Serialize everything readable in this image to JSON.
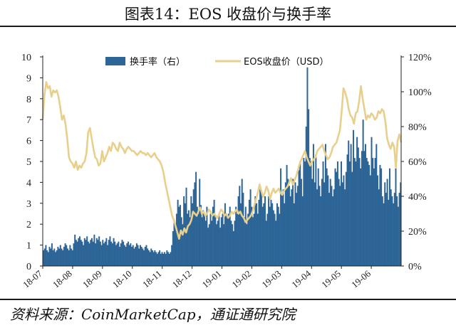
{
  "header": {
    "title": "图表14：EOS 收盘价与换手率"
  },
  "footer": {
    "source": "资料来源：CoinMarketCap，通证通研究院"
  },
  "colors": {
    "bars": "#2d6597",
    "line": "#e8cf8c",
    "axis": "#222222",
    "rules": "#1a1a1a"
  },
  "chart_data": {
    "type": "bar+line",
    "title": "图表14：EOS 收盘价与换手率",
    "legend_position": "top-center",
    "grid": false,
    "y_left": {
      "min": 0,
      "max": 10,
      "ticks": [
        "0",
        "1",
        "2",
        "3",
        "4",
        "5",
        "6",
        "7",
        "8",
        "9",
        "10"
      ]
    },
    "y_right": {
      "min": 0,
      "max": 120,
      "unit": "%",
      "ticks": [
        "0%",
        "20%",
        "40%",
        "60%",
        "80%",
        "100%",
        "120%"
      ]
    },
    "x_tick_labels": [
      "18-07",
      "18-08",
      "18-09",
      "18-10",
      "18-11",
      "18-12",
      "19-01",
      "19-02",
      "19-03",
      "19-04",
      "19-05",
      "19-06"
    ],
    "series": [
      {
        "name": "换手率（右）",
        "type": "bar",
        "axis": "right",
        "values_pct": [
          9,
          10,
          12,
          9,
          8,
          11,
          10,
          13,
          9,
          10,
          8,
          9,
          11,
          10,
          12,
          10,
          9,
          11,
          13,
          12,
          10,
          9,
          12,
          10,
          9,
          13,
          18,
          15,
          14,
          16,
          17,
          15,
          14,
          12,
          16,
          15,
          17,
          14,
          13,
          15,
          16,
          14,
          18,
          13,
          16,
          15,
          17,
          14,
          12,
          15,
          13,
          14,
          16,
          12,
          15,
          17,
          14,
          13,
          16,
          14,
          12,
          13,
          14,
          11,
          13,
          15,
          14,
          12,
          11,
          13,
          14,
          12,
          13,
          11,
          12,
          10,
          11,
          13,
          12,
          10,
          12,
          11,
          10,
          9,
          11,
          12,
          10,
          9,
          8,
          10,
          9,
          8,
          9,
          8,
          7,
          8,
          9,
          7,
          8,
          7,
          8,
          7,
          9,
          8,
          7,
          8,
          12,
          20,
          26,
          22,
          30,
          38,
          34,
          35,
          28,
          24,
          40,
          36,
          45,
          30,
          32,
          28,
          40,
          36,
          44,
          48,
          54,
          34,
          30,
          50,
          35,
          28,
          32,
          30,
          26,
          34,
          22,
          24,
          30,
          26,
          34,
          38,
          28,
          24,
          26,
          30,
          22,
          28,
          30,
          24,
          36,
          30,
          28,
          30,
          34,
          26,
          24,
          20,
          26,
          34,
          30,
          40,
          46,
          36,
          50,
          42,
          28,
          34,
          24,
          30,
          38,
          44,
          34,
          28,
          30,
          40,
          36,
          30,
          38,
          44,
          42,
          34,
          36,
          40,
          26,
          30,
          40,
          34,
          38,
          36,
          32,
          30,
          26,
          36,
          34,
          30,
          56,
          42,
          44,
          36,
          48,
          58,
          50,
          46,
          40,
          44,
          50,
          36,
          48,
          42,
          46,
          55,
          60,
          50,
          40,
          62,
          60,
          80,
          114,
          90,
          62,
          60,
          50,
          70,
          48,
          64,
          44,
          56,
          46,
          40,
          50,
          60,
          48,
          70,
          56,
          52,
          42,
          50,
          46,
          40,
          44,
          56,
          54,
          60,
          50,
          46,
          60,
          48,
          52,
          44,
          54,
          64,
          72,
          60,
          70,
          54,
          78,
          62,
          60,
          74,
          68,
          62,
          56,
          66,
          84,
          66,
          70,
          62,
          60,
          58,
          52,
          74,
          62,
          56,
          62,
          70,
          52,
          44,
          58,
          56,
          40,
          36,
          48,
          42,
          50,
          38,
          56,
          44,
          40,
          36,
          42,
          56,
          40,
          34,
          42,
          48
        ]
      },
      {
        "name": "EOS收盘价（USD）",
        "type": "line",
        "axis": "left",
        "values": [
          7.0,
          8.2,
          8.8,
          8.5,
          8.6,
          8.1,
          8.4,
          8.3,
          8.4,
          8.1,
          7.6,
          7.0,
          7.2,
          6.8,
          6.1,
          5.2,
          5.0,
          4.9,
          4.7,
          5.0,
          4.6,
          4.8,
          4.7,
          4.9,
          5.0,
          5.4,
          6.4,
          6.6,
          6.1,
          5.6,
          5.2,
          5.1,
          4.8,
          4.9,
          5.5,
          5.0,
          5.2,
          5.4,
          5.7,
          5.5,
          5.9,
          5.8,
          5.6,
          5.5,
          5.9,
          5.7,
          5.6,
          5.4,
          5.6,
          5.7,
          5.6,
          5.5,
          5.5,
          5.4,
          5.3,
          5.4,
          5.5,
          5.4,
          5.4,
          5.3,
          5.4,
          5.3,
          5.2,
          5.3,
          5.4,
          5.2,
          5.1,
          5.0,
          4.8,
          4.5,
          4.0,
          3.6,
          3.2,
          2.8,
          2.4,
          2.2,
          1.9,
          1.6,
          1.3,
          1.7,
          1.5,
          1.8,
          1.6,
          1.9,
          2.0,
          2.2,
          2.6,
          2.5,
          2.4,
          2.6,
          2.8,
          2.5,
          2.6,
          2.4,
          2.5,
          2.7,
          2.6,
          2.4,
          2.5,
          2.4,
          2.3,
          2.5,
          2.7,
          2.6,
          2.4,
          2.5,
          2.3,
          2.4,
          2.6,
          2.5,
          2.6,
          2.7,
          2.5,
          2.6,
          2.4,
          2.3,
          2.1,
          2.2,
          2.3,
          2.4,
          2.6,
          2.9,
          3.2,
          3.5,
          3.9,
          3.6,
          3.3,
          3.5,
          3.8,
          3.6,
          3.2,
          3.5,
          3.7,
          3.5,
          3.6,
          3.7,
          3.5,
          3.4,
          3.6,
          3.7,
          3.8,
          4.0,
          4.2,
          3.9,
          4.1,
          4.3,
          4.6,
          4.9,
          5.1,
          5.3,
          5.5,
          5.2,
          5.0,
          4.8,
          5.0,
          5.1,
          5.2,
          5.5,
          5.6,
          5.7,
          5.8,
          5.5,
          5.3,
          5.1,
          5.2,
          5.4,
          5.7,
          5.8,
          5.9,
          6.2,
          6.5,
          7.4,
          8.5,
          8.3,
          8.0,
          7.5,
          7.2,
          7.1,
          6.8,
          7.3,
          7.4,
          7.9,
          8.6,
          8.0,
          7.5,
          7.0,
          7.2,
          7.1,
          7.3,
          7.2,
          7.0,
          7.1,
          7.4,
          7.3,
          7.5,
          7.4,
          6.9,
          6.1,
          5.8,
          5.6,
          5.9,
          5.7,
          4.7,
          6.0,
          6.3,
          5.9
        ]
      }
    ]
  }
}
